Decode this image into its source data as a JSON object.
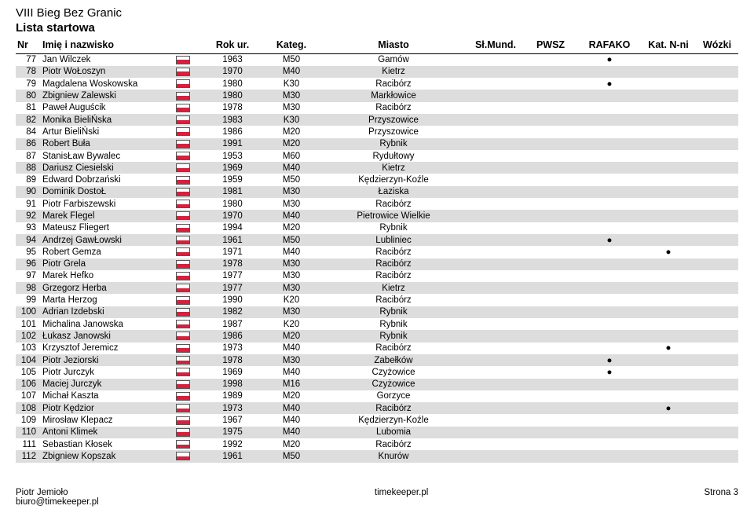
{
  "header": {
    "title1": "VIII Bieg Bez Granic",
    "title2": "Lista startowa"
  },
  "columns": {
    "nr": "Nr",
    "name": "Imię i nazwisko",
    "flag": "",
    "year": "Rok ur.",
    "kateg": "Kateg.",
    "miasto": "Miasto",
    "slmund": "Sł.Mund.",
    "pwsz": "PWSZ",
    "rafako": "RAFAKO",
    "katnni": "Kat. N-ni",
    "wozki": "Wózki"
  },
  "col_widths": {
    "nr": 32,
    "name": 170,
    "flag": 34,
    "year": 80,
    "kateg": 70,
    "miasto": 190,
    "slmund": 70,
    "pwsz": 70,
    "rafako": 80,
    "katnni": 70,
    "wozki": 54
  },
  "rows": [
    {
      "nr": 77,
      "name": "Jan Wilczek",
      "year": 1963,
      "k": "M50",
      "m": "Gamów",
      "slmund": "",
      "pwsz": "",
      "rafako": "●",
      "katnni": "",
      "wozki": ""
    },
    {
      "nr": 78,
      "name": "Piotr WoŁoszyn",
      "year": 1970,
      "k": "M40",
      "m": "Kietrz",
      "slmund": "",
      "pwsz": "",
      "rafako": "",
      "katnni": "",
      "wozki": ""
    },
    {
      "nr": 79,
      "name": "Magdalena Woskowska",
      "year": 1980,
      "k": "K30",
      "m": "Racibórz",
      "slmund": "",
      "pwsz": "",
      "rafako": "●",
      "katnni": "",
      "wozki": ""
    },
    {
      "nr": 80,
      "name": "Zbigniew Zalewski",
      "year": 1980,
      "k": "M30",
      "m": "Markłowice",
      "slmund": "",
      "pwsz": "",
      "rafako": "",
      "katnni": "",
      "wozki": ""
    },
    {
      "nr": 81,
      "name": "Paweł Auguścik",
      "year": 1978,
      "k": "M30",
      "m": "Racibórz",
      "slmund": "",
      "pwsz": "",
      "rafako": "",
      "katnni": "",
      "wozki": ""
    },
    {
      "nr": 82,
      "name": "Monika BieliŃska",
      "year": 1983,
      "k": "K30",
      "m": "Przyszowice",
      "slmund": "",
      "pwsz": "",
      "rafako": "",
      "katnni": "",
      "wozki": ""
    },
    {
      "nr": 84,
      "name": "Artur BieliŃski",
      "year": 1986,
      "k": "M20",
      "m": "Przyszowice",
      "slmund": "",
      "pwsz": "",
      "rafako": "",
      "katnni": "",
      "wozki": ""
    },
    {
      "nr": 86,
      "name": "Robert Buła",
      "year": 1991,
      "k": "M20",
      "m": "Rybnik",
      "slmund": "",
      "pwsz": "",
      "rafako": "",
      "katnni": "",
      "wozki": ""
    },
    {
      "nr": 87,
      "name": "StanisŁaw Bywalec",
      "year": 1953,
      "k": "M60",
      "m": "Rydułtowy",
      "slmund": "",
      "pwsz": "",
      "rafako": "",
      "katnni": "",
      "wozki": ""
    },
    {
      "nr": 88,
      "name": "Dariusz Ciesielski",
      "year": 1969,
      "k": "M40",
      "m": "Kietrz",
      "slmund": "",
      "pwsz": "",
      "rafako": "",
      "katnni": "",
      "wozki": ""
    },
    {
      "nr": 89,
      "name": "Edward Dobrzański",
      "year": 1959,
      "k": "M50",
      "m": "Kędzierzyn-Koźle",
      "slmund": "",
      "pwsz": "",
      "rafako": "",
      "katnni": "",
      "wozki": ""
    },
    {
      "nr": 90,
      "name": "Dominik DostoŁ",
      "year": 1981,
      "k": "M30",
      "m": "Łaziska",
      "slmund": "",
      "pwsz": "",
      "rafako": "",
      "katnni": "",
      "wozki": ""
    },
    {
      "nr": 91,
      "name": "Piotr Farbiszewski",
      "year": 1980,
      "k": "M30",
      "m": "Racibórz",
      "slmund": "",
      "pwsz": "",
      "rafako": "",
      "katnni": "",
      "wozki": ""
    },
    {
      "nr": 92,
      "name": "Marek Flegel",
      "year": 1970,
      "k": "M40",
      "m": "Pietrowice Wielkie",
      "slmund": "",
      "pwsz": "",
      "rafako": "",
      "katnni": "",
      "wozki": ""
    },
    {
      "nr": 93,
      "name": "Mateusz Fliegert",
      "year": 1994,
      "k": "M20",
      "m": "Rybnik",
      "slmund": "",
      "pwsz": "",
      "rafako": "",
      "katnni": "",
      "wozki": ""
    },
    {
      "nr": 94,
      "name": "Andrzej GawŁowski",
      "year": 1961,
      "k": "M50",
      "m": "Lubliniec",
      "slmund": "",
      "pwsz": "",
      "rafako": "●",
      "katnni": "",
      "wozki": ""
    },
    {
      "nr": 95,
      "name": "Robert Gemza",
      "year": 1971,
      "k": "M40",
      "m": "Racibórz",
      "slmund": "",
      "pwsz": "",
      "rafako": "",
      "katnni": "●",
      "wozki": ""
    },
    {
      "nr": 96,
      "name": "Piotr Grela",
      "year": 1978,
      "k": "M30",
      "m": "Racibórz",
      "slmund": "",
      "pwsz": "",
      "rafako": "",
      "katnni": "",
      "wozki": ""
    },
    {
      "nr": 97,
      "name": "Marek Hefko",
      "year": 1977,
      "k": "M30",
      "m": "Racibórz",
      "slmund": "",
      "pwsz": "",
      "rafako": "",
      "katnni": "",
      "wozki": ""
    },
    {
      "nr": 98,
      "name": "Grzegorz Herba",
      "year": 1977,
      "k": "M30",
      "m": "Kietrz",
      "slmund": "",
      "pwsz": "",
      "rafako": "",
      "katnni": "",
      "wozki": ""
    },
    {
      "nr": 99,
      "name": "Marta Herzog",
      "year": 1990,
      "k": "K20",
      "m": "Racibórz",
      "slmund": "",
      "pwsz": "",
      "rafako": "",
      "katnni": "",
      "wozki": ""
    },
    {
      "nr": 100,
      "name": "Adrian Izdebski",
      "year": 1982,
      "k": "M30",
      "m": "Rybnik",
      "slmund": "",
      "pwsz": "",
      "rafako": "",
      "katnni": "",
      "wozki": ""
    },
    {
      "nr": 101,
      "name": "Michalina Janowska",
      "year": 1987,
      "k": "K20",
      "m": "Rybnik",
      "slmund": "",
      "pwsz": "",
      "rafako": "",
      "katnni": "",
      "wozki": ""
    },
    {
      "nr": 102,
      "name": "Łukasz Janowski",
      "year": 1986,
      "k": "M20",
      "m": "Rybnik",
      "slmund": "",
      "pwsz": "",
      "rafako": "",
      "katnni": "",
      "wozki": ""
    },
    {
      "nr": 103,
      "name": "Krzysztof Jeremicz",
      "year": 1973,
      "k": "M40",
      "m": "Racibórz",
      "slmund": "",
      "pwsz": "",
      "rafako": "",
      "katnni": "●",
      "wozki": ""
    },
    {
      "nr": 104,
      "name": "Piotr Jeziorski",
      "year": 1978,
      "k": "M30",
      "m": "Zabełków",
      "slmund": "",
      "pwsz": "",
      "rafako": "●",
      "katnni": "",
      "wozki": ""
    },
    {
      "nr": 105,
      "name": "Piotr Jurczyk",
      "year": 1969,
      "k": "M40",
      "m": "Czyżowice",
      "slmund": "",
      "pwsz": "",
      "rafako": "●",
      "katnni": "",
      "wozki": ""
    },
    {
      "nr": 106,
      "name": "Maciej Jurczyk",
      "year": 1998,
      "k": "M16",
      "m": "Czyżowice",
      "slmund": "",
      "pwsz": "",
      "rafako": "",
      "katnni": "",
      "wozki": ""
    },
    {
      "nr": 107,
      "name": "Michał Kaszta",
      "year": 1989,
      "k": "M20",
      "m": "Gorzyce",
      "slmund": "",
      "pwsz": "",
      "rafako": "",
      "katnni": "",
      "wozki": ""
    },
    {
      "nr": 108,
      "name": "Piotr Kędzior",
      "year": 1973,
      "k": "M40",
      "m": "Racibórz",
      "slmund": "",
      "pwsz": "",
      "rafako": "",
      "katnni": "●",
      "wozki": ""
    },
    {
      "nr": 109,
      "name": "Mirosław Klepacz",
      "year": 1967,
      "k": "M40",
      "m": "Kędzierzyn-Koźle",
      "slmund": "",
      "pwsz": "",
      "rafako": "",
      "katnni": "",
      "wozki": ""
    },
    {
      "nr": 110,
      "name": "Antoni Klimek",
      "year": 1975,
      "k": "M40",
      "m": "Lubomia",
      "slmund": "",
      "pwsz": "",
      "rafako": "",
      "katnni": "",
      "wozki": ""
    },
    {
      "nr": 111,
      "name": "Sebastian Kłosek",
      "year": 1992,
      "k": "M20",
      "m": "Racibórz",
      "slmund": "",
      "pwsz": "",
      "rafako": "",
      "katnni": "",
      "wozki": ""
    },
    {
      "nr": 112,
      "name": "Zbigniew Kopszak",
      "year": 1961,
      "k": "M50",
      "m": "Knurów",
      "slmund": "",
      "pwsz": "",
      "rafako": "",
      "katnni": "",
      "wozki": ""
    }
  ],
  "alt_row_bg": "#dddddd",
  "footer": {
    "left1": "Piotr Jemioło",
    "left2": "biuro@timekeeper.pl",
    "center": "timekeeper.pl",
    "right": "Strona 3"
  }
}
